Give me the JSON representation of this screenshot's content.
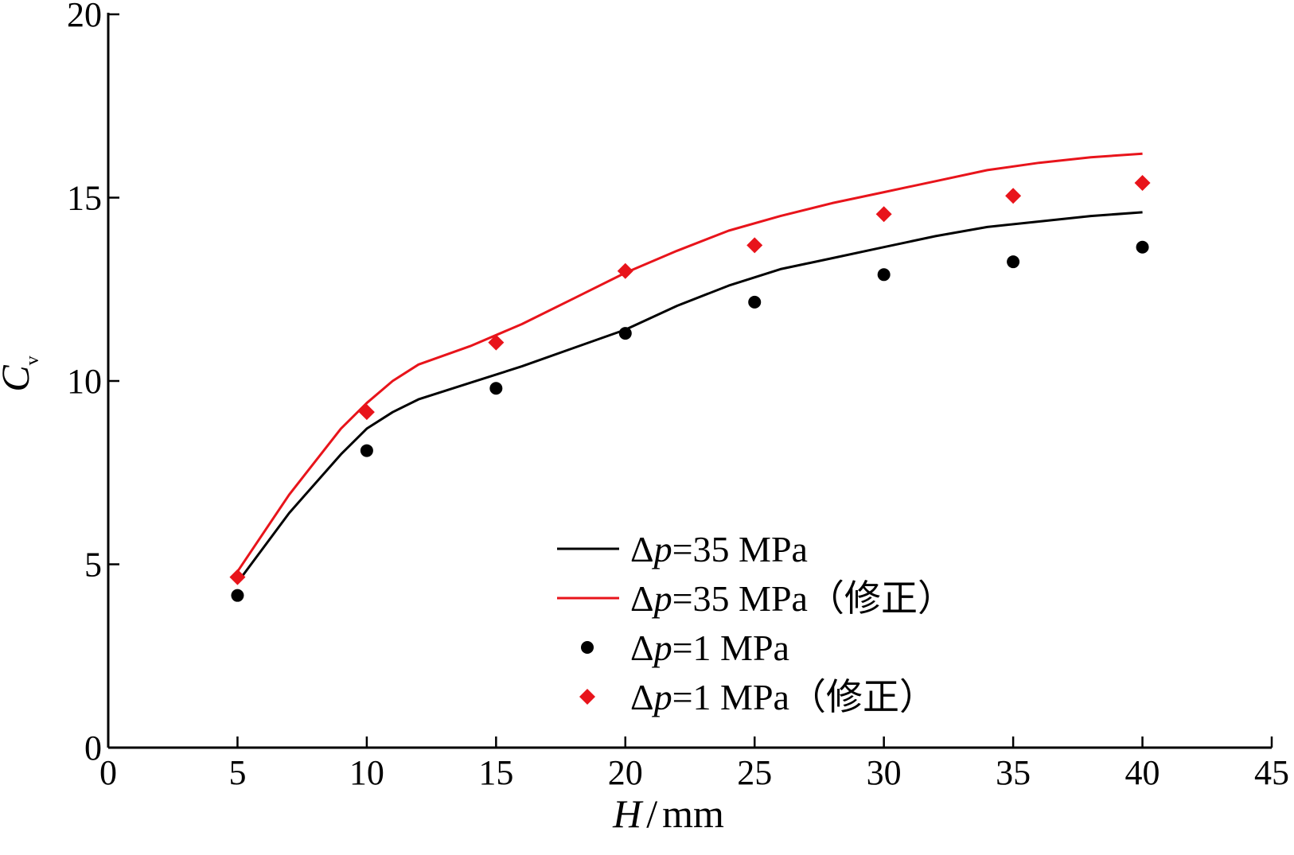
{
  "chart_data": {
    "type": "line",
    "title": "",
    "xlabel": {
      "var": "H",
      "sep": "/",
      "unit": "mm"
    },
    "ylabel": {
      "var": "C",
      "sub": "v"
    },
    "xlim": [
      0,
      45
    ],
    "ylim": [
      0,
      20
    ],
    "xticks": [
      "0",
      "5",
      "10",
      "15",
      "20",
      "25",
      "30",
      "35",
      "40",
      "45"
    ],
    "yticks": [
      "0",
      "5",
      "10",
      "15",
      "20"
    ],
    "legend_position": "bottom-center",
    "series": [
      {
        "name": "Δp=35 MPa",
        "legend": {
          "delta": "Δ",
          "p": "p",
          "rest": "=35 MPa"
        },
        "kind": "line",
        "color": "#000000",
        "x": [
          5,
          7,
          9,
          10,
          11,
          12,
          14,
          16,
          18,
          20,
          22,
          24,
          26,
          28,
          30,
          32,
          34,
          36,
          38,
          40
        ],
        "values": [
          4.5,
          6.4,
          8.0,
          8.7,
          9.15,
          9.5,
          9.95,
          10.4,
          10.9,
          11.4,
          12.05,
          12.6,
          13.05,
          13.35,
          13.65,
          13.95,
          14.2,
          14.35,
          14.5,
          14.6
        ]
      },
      {
        "name": "Δp=35 MPa（修正）",
        "legend": {
          "delta": "Δ",
          "p": "p",
          "rest": "=35 MPa（修正）"
        },
        "kind": "line",
        "color": "#e8141b",
        "x": [
          5,
          7,
          9,
          10,
          11,
          12,
          14,
          16,
          18,
          20,
          22,
          24,
          26,
          28,
          30,
          32,
          34,
          36,
          38,
          40
        ],
        "values": [
          4.8,
          6.9,
          8.7,
          9.4,
          10.0,
          10.45,
          10.95,
          11.55,
          12.25,
          12.95,
          13.55,
          14.1,
          14.5,
          14.85,
          15.15,
          15.45,
          15.75,
          15.95,
          16.1,
          16.2
        ]
      },
      {
        "name": "Δp=1 MPa",
        "legend": {
          "delta": "Δ",
          "p": "p",
          "rest": "=1 MPa"
        },
        "kind": "scatter",
        "marker": "circle",
        "color": "#000000",
        "x": [
          5,
          10,
          15,
          20,
          25,
          30,
          35,
          40
        ],
        "values": [
          4.15,
          8.1,
          9.8,
          11.3,
          12.15,
          12.9,
          13.25,
          13.65
        ]
      },
      {
        "name": "Δp=1 MPa（修正）",
        "legend": {
          "delta": "Δ",
          "p": "p",
          "rest": "=1 MPa（修正）"
        },
        "kind": "scatter",
        "marker": "diamond",
        "color": "#e8141b",
        "x": [
          5,
          10,
          15,
          20,
          25,
          30,
          35,
          40
        ],
        "values": [
          4.65,
          9.15,
          11.05,
          13.0,
          13.7,
          14.55,
          15.05,
          15.4
        ]
      }
    ]
  }
}
